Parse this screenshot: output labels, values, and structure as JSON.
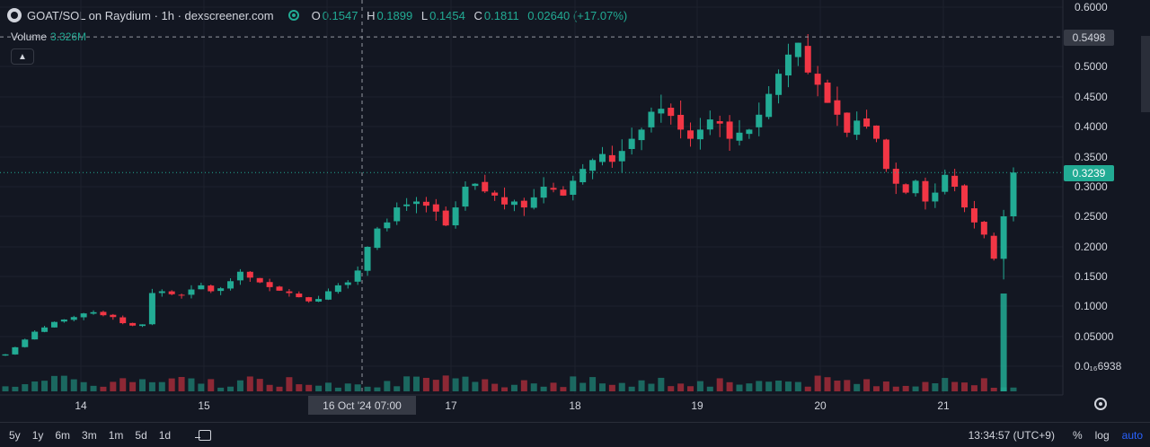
{
  "legend": {
    "title": "GOAT/SOL on Raydium · 1h · dexscreener.com",
    "o_key": "O",
    "o_val": "0.1547",
    "h_key": "H",
    "h_val": "0.1899",
    "l_key": "L",
    "l_val": "0.1454",
    "c_key": "C",
    "c_val": "0.1811",
    "change": "0.02640 (+17.07%)"
  },
  "volume": {
    "label": "Volume",
    "value": "3.326M"
  },
  "crosshair": {
    "date_label": "16 Oct '24   07:00",
    "price_label": "0.5498",
    "price": 0.5498
  },
  "last_price": {
    "label": "0.3239",
    "price": 0.3239
  },
  "timeframes": [
    "5y",
    "1y",
    "6m",
    "3m",
    "1m",
    "5d",
    "1d"
  ],
  "status": {
    "time": "13:34:57 (UTC+9)",
    "percent": "%",
    "log": "log",
    "auto": "auto"
  },
  "colors": {
    "up": "#22ab94",
    "down": "#f23645",
    "bg": "#131722",
    "grid": "#2a2e39"
  },
  "chart_data": {
    "type": "candlestick",
    "y_axis_ticks": [
      {
        "label": "0.6000",
        "value": 0.6
      },
      {
        "label": "0.5000",
        "value": 0.5
      },
      {
        "label": "0.4500",
        "value": 0.45
      },
      {
        "label": "0.4000",
        "value": 0.4
      },
      {
        "label": "0.3500",
        "value": 0.35
      },
      {
        "label": "0.3000",
        "value": 0.3
      },
      {
        "label": "0.2500",
        "value": 0.25
      },
      {
        "label": "0.2000",
        "value": 0.2
      },
      {
        "label": "0.1500",
        "value": 0.15
      },
      {
        "label": "0.1000",
        "value": 0.1
      },
      {
        "label": "0.05000",
        "value": 0.05
      },
      {
        "label": "0.0₁₆6938",
        "value": 0.0
      }
    ],
    "x_axis_ticks": [
      "14",
      "15",
      "16",
      "17",
      "18",
      "19",
      "20",
      "21"
    ],
    "close_path": [
      0.02,
      0.032,
      0.045,
      0.058,
      0.065,
      0.074,
      0.078,
      0.082,
      0.088,
      0.09,
      0.085,
      0.082,
      0.072,
      0.068,
      0.07,
      0.122,
      0.125,
      0.12,
      0.118,
      0.128,
      0.135,
      0.125,
      0.13,
      0.142,
      0.158,
      0.148,
      0.14,
      0.132,
      0.126,
      0.122,
      0.115,
      0.108,
      0.112,
      0.125,
      0.135,
      0.14,
      0.16,
      0.2,
      0.23,
      0.24,
      0.265,
      0.27,
      0.275,
      0.268,
      0.258,
      0.235,
      0.265,
      0.3,
      0.305,
      0.292,
      0.285,
      0.27,
      0.275,
      0.265,
      0.282,
      0.3,
      0.295,
      0.285,
      0.31,
      0.33,
      0.345,
      0.355,
      0.342,
      0.36,
      0.38,
      0.395,
      0.425,
      0.43,
      0.418,
      0.395,
      0.38,
      0.395,
      0.412,
      0.405,
      0.38,
      0.39,
      0.395,
      0.42,
      0.455,
      0.488,
      0.52,
      0.54,
      0.49,
      0.47,
      0.44,
      0.42,
      0.39,
      0.41,
      0.4,
      0.38,
      0.33,
      0.305,
      0.29,
      0.31,
      0.275,
      0.29,
      0.32,
      0.3,
      0.265,
      0.24,
      0.22,
      0.18,
      0.25,
      0.3239
    ],
    "volume_last_spike": 3.326
  }
}
